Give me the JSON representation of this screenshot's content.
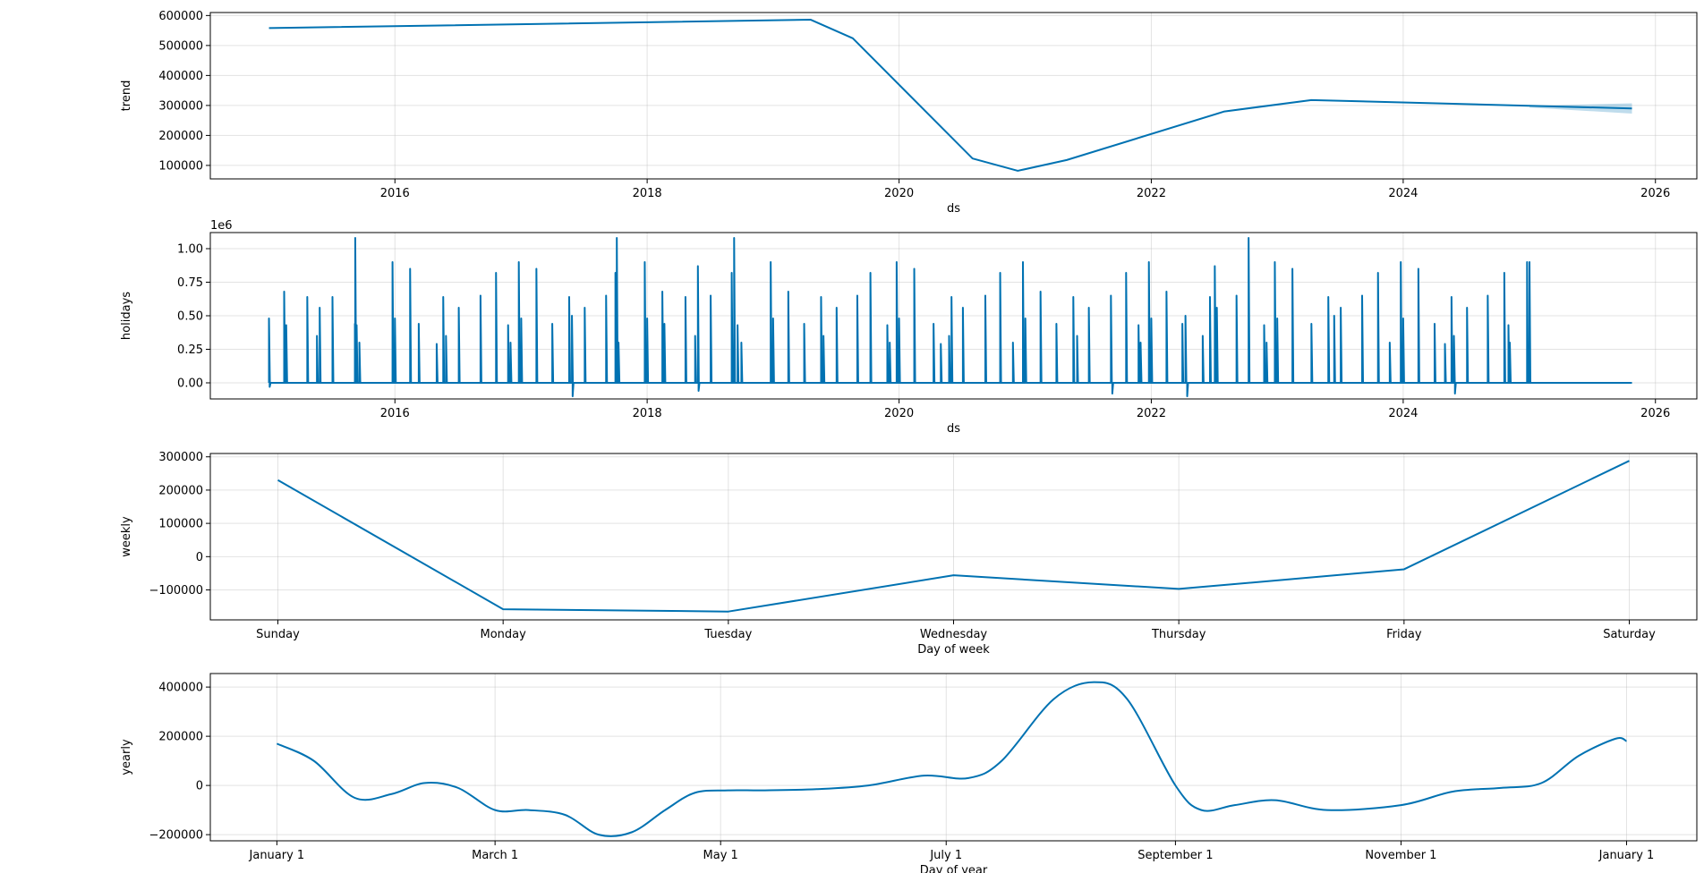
{
  "chart_data": [
    {
      "id": "trend",
      "type": "line",
      "xlabel": "ds",
      "ylabel": "trend",
      "x_axis": "date",
      "xlim": [
        "2014-07-15",
        "2026-05-01"
      ],
      "ylim": [
        55000,
        610000
      ],
      "xticks": [
        {
          "value": "2016-01-01",
          "label": "2016"
        },
        {
          "value": "2018-01-01",
          "label": "2018"
        },
        {
          "value": "2020-01-01",
          "label": "2020"
        },
        {
          "value": "2022-01-01",
          "label": "2022"
        },
        {
          "value": "2024-01-01",
          "label": "2024"
        },
        {
          "value": "2026-01-01",
          "label": "2026"
        }
      ],
      "yticks": [
        {
          "value": 100000,
          "label": "100000"
        },
        {
          "value": 200000,
          "label": "200000"
        },
        {
          "value": 300000,
          "label": "300000"
        },
        {
          "value": 400000,
          "label": "400000"
        },
        {
          "value": 500000,
          "label": "500000"
        },
        {
          "value": 600000,
          "label": "600000"
        }
      ],
      "grid": true,
      "series": [
        {
          "color": "#0072B2",
          "x": [
            "2015-01-01",
            "2019-04-20",
            "2019-08-20",
            "2020-08-01",
            "2020-12-10",
            "2021-05-01",
            "2022-08-01",
            "2023-04-10",
            "2025-10-25"
          ],
          "y": [
            558000,
            586000,
            524000,
            123000,
            82000,
            118000,
            280000,
            318000,
            290000
          ]
        }
      ],
      "uncertainty": {
        "color": "#0072B2",
        "x": [
          "2025-01-01",
          "2025-10-25"
        ],
        "upper": [
          299000,
          307000
        ],
        "lower": [
          293000,
          273000
        ]
      }
    },
    {
      "id": "holidays",
      "type": "line",
      "xlabel": "ds",
      "ylabel": "holidays",
      "x_axis": "date",
      "offset_text": "1e6",
      "xlim": [
        "2014-07-15",
        "2026-05-01"
      ],
      "ylim": [
        -0.12,
        1.12
      ],
      "xticks": [
        {
          "value": "2016-01-01",
          "label": "2016"
        },
        {
          "value": "2018-01-01",
          "label": "2018"
        },
        {
          "value": "2020-01-01",
          "label": "2020"
        },
        {
          "value": "2022-01-01",
          "label": "2022"
        },
        {
          "value": "2024-01-01",
          "label": "2024"
        },
        {
          "value": "2026-01-01",
          "label": "2026"
        }
      ],
      "yticks": [
        {
          "value": 0.0,
          "label": "0.00"
        },
        {
          "value": 0.25,
          "label": "0.25"
        },
        {
          "value": 0.5,
          "label": "0.50"
        },
        {
          "value": 0.75,
          "label": "0.75"
        },
        {
          "value": 1.0,
          "label": "1.00"
        }
      ],
      "grid": true,
      "baseline_end": "2025-10-25",
      "series": [
        {
          "color": "#0072B2",
          "spikes": [
            [
              "2015-01-01",
              0.48
            ],
            [
              "2015-01-03",
              -0.03
            ],
            [
              "2015-02-14",
              0.68
            ],
            [
              "2015-02-20",
              0.43
            ],
            [
              "2015-04-22",
              0.64
            ],
            [
              "2015-05-20",
              0.35
            ],
            [
              "2015-05-28",
              0.56
            ],
            [
              "2015-07-04",
              0.64
            ],
            [
              "2015-09-07",
              0.44
            ],
            [
              "2015-09-08",
              1.08
            ],
            [
              "2015-09-12",
              0.43
            ],
            [
              "2015-09-20",
              0.3
            ],
            [
              "2015-12-25",
              0.9
            ],
            [
              "2016-01-01",
              0.48
            ],
            [
              "2016-02-14",
              0.85
            ],
            [
              "2016-03-10",
              0.44
            ],
            [
              "2016-05-01",
              0.29
            ],
            [
              "2016-05-20",
              0.64
            ],
            [
              "2016-05-28",
              0.35
            ],
            [
              "2016-07-04",
              0.56
            ],
            [
              "2016-09-05",
              0.65
            ],
            [
              "2016-10-20",
              0.82
            ],
            [
              "2016-11-24",
              0.43
            ],
            [
              "2016-12-01",
              0.3
            ],
            [
              "2016-12-25",
              0.9
            ],
            [
              "2017-01-01",
              0.48
            ],
            [
              "2017-02-14",
              0.85
            ],
            [
              "2017-04-01",
              0.44
            ],
            [
              "2017-05-20",
              0.64
            ],
            [
              "2017-05-28",
              0.5
            ],
            [
              "2017-05-30",
              -0.1
            ],
            [
              "2017-07-04",
              0.56
            ],
            [
              "2017-09-04",
              0.65
            ],
            [
              "2017-10-01",
              0.82
            ],
            [
              "2017-10-05",
              1.08
            ],
            [
              "2017-10-10",
              0.3
            ],
            [
              "2017-12-25",
              0.9
            ],
            [
              "2018-01-01",
              0.48
            ],
            [
              "2018-02-14",
              0.68
            ],
            [
              "2018-02-20",
              0.44
            ],
            [
              "2018-04-22",
              0.64
            ],
            [
              "2018-05-20",
              0.35
            ],
            [
              "2018-05-28",
              0.87
            ],
            [
              "2018-05-30",
              -0.06
            ],
            [
              "2018-07-04",
              0.65
            ],
            [
              "2018-09-03",
              0.82
            ],
            [
              "2018-09-10",
              1.08
            ],
            [
              "2018-09-20",
              0.43
            ],
            [
              "2018-10-01",
              0.3
            ],
            [
              "2018-12-25",
              0.9
            ],
            [
              "2019-01-01",
              0.48
            ],
            [
              "2019-02-14",
              0.68
            ],
            [
              "2019-04-01",
              0.44
            ],
            [
              "2019-05-20",
              0.64
            ],
            [
              "2019-05-27",
              0.35
            ],
            [
              "2019-07-04",
              0.56
            ],
            [
              "2019-09-02",
              0.65
            ],
            [
              "2019-10-10",
              0.82
            ],
            [
              "2019-11-28",
              0.43
            ],
            [
              "2019-12-05",
              0.3
            ],
            [
              "2019-12-25",
              0.9
            ],
            [
              "2020-01-01",
              0.48
            ],
            [
              "2020-02-14",
              0.85
            ],
            [
              "2020-04-10",
              0.44
            ],
            [
              "2020-05-01",
              0.29
            ],
            [
              "2020-05-25",
              0.35
            ],
            [
              "2020-06-01",
              0.64
            ],
            [
              "2020-07-04",
              0.56
            ],
            [
              "2020-09-07",
              0.65
            ],
            [
              "2020-10-20",
              0.82
            ],
            [
              "2020-11-26",
              0.3
            ],
            [
              "2020-12-25",
              0.9
            ],
            [
              "2021-01-01",
              0.48
            ],
            [
              "2021-02-14",
              0.68
            ],
            [
              "2021-04-01",
              0.44
            ],
            [
              "2021-05-20",
              0.64
            ],
            [
              "2021-05-31",
              0.35
            ],
            [
              "2021-07-04",
              0.56
            ],
            [
              "2021-09-06",
              0.65
            ],
            [
              "2021-09-10",
              -0.08
            ],
            [
              "2021-10-20",
              0.82
            ],
            [
              "2021-11-25",
              0.43
            ],
            [
              "2021-12-01",
              0.3
            ],
            [
              "2021-12-25",
              0.9
            ],
            [
              "2022-01-01",
              0.48
            ],
            [
              "2022-02-14",
              0.68
            ],
            [
              "2022-04-01",
              0.44
            ],
            [
              "2022-04-10",
              0.5
            ],
            [
              "2022-04-15",
              -0.1
            ],
            [
              "2022-05-30",
              0.35
            ],
            [
              "2022-06-20",
              0.64
            ],
            [
              "2022-07-04",
              0.87
            ],
            [
              "2022-07-10",
              0.56
            ],
            [
              "2022-09-05",
              0.65
            ],
            [
              "2022-10-10",
              1.08
            ],
            [
              "2022-11-24",
              0.43
            ],
            [
              "2022-12-01",
              0.3
            ],
            [
              "2022-12-25",
              0.9
            ],
            [
              "2023-01-01",
              0.48
            ],
            [
              "2023-02-14",
              0.85
            ],
            [
              "2023-04-10",
              0.44
            ],
            [
              "2023-05-29",
              0.64
            ],
            [
              "2023-06-15",
              0.5
            ],
            [
              "2023-07-04",
              0.56
            ],
            [
              "2023-09-04",
              0.65
            ],
            [
              "2023-10-20",
              0.82
            ],
            [
              "2023-11-23",
              0.3
            ],
            [
              "2023-12-25",
              0.9
            ],
            [
              "2024-01-01",
              0.48
            ],
            [
              "2024-02-14",
              0.85
            ],
            [
              "2024-04-01",
              0.44
            ],
            [
              "2024-05-01",
              0.29
            ],
            [
              "2024-05-20",
              0.64
            ],
            [
              "2024-05-27",
              0.35
            ],
            [
              "2024-05-30",
              -0.08
            ],
            [
              "2024-07-04",
              0.56
            ],
            [
              "2024-09-02",
              0.65
            ],
            [
              "2024-10-20",
              0.82
            ],
            [
              "2024-11-01",
              0.43
            ],
            [
              "2024-11-05",
              0.3
            ],
            [
              "2024-12-25",
              0.9
            ],
            [
              "2025-01-01",
              0.9
            ]
          ]
        }
      ]
    },
    {
      "id": "weekly",
      "type": "line",
      "xlabel": "Day of week",
      "ylabel": "weekly",
      "x_axis": "index",
      "xlim": [
        -0.3,
        6.3
      ],
      "ylim": [
        -190000,
        310000
      ],
      "xticks": [
        {
          "value": 0,
          "label": "Sunday"
        },
        {
          "value": 1,
          "label": "Monday"
        },
        {
          "value": 2,
          "label": "Tuesday"
        },
        {
          "value": 3,
          "label": "Wednesday"
        },
        {
          "value": 4,
          "label": "Thursday"
        },
        {
          "value": 5,
          "label": "Friday"
        },
        {
          "value": 6,
          "label": "Saturday"
        }
      ],
      "yticks": [
        {
          "value": -100000,
          "label": "−100000"
        },
        {
          "value": 0,
          "label": "0"
        },
        {
          "value": 100000,
          "label": "100000"
        },
        {
          "value": 200000,
          "label": "200000"
        },
        {
          "value": 300000,
          "label": "300000"
        }
      ],
      "grid": true,
      "series": [
        {
          "color": "#0072B2",
          "x": [
            0,
            1,
            2,
            3,
            4,
            5,
            6
          ],
          "y": [
            230000,
            -158000,
            -165000,
            -56000,
            -97000,
            -38000,
            288000
          ]
        }
      ]
    },
    {
      "id": "yearly",
      "type": "line",
      "xlabel": "Day of year",
      "ylabel": "yearly",
      "x_axis": "day-of-year",
      "smooth": true,
      "xlim": [
        -18,
        384
      ],
      "ylim": [
        -225000,
        455000
      ],
      "xticks": [
        {
          "value": 0,
          "label": "January 1"
        },
        {
          "value": 59,
          "label": "March 1"
        },
        {
          "value": 120,
          "label": "May 1"
        },
        {
          "value": 181,
          "label": "July 1"
        },
        {
          "value": 243,
          "label": "September 1"
        },
        {
          "value": 304,
          "label": "November 1"
        },
        {
          "value": 365,
          "label": "January 1"
        }
      ],
      "yticks": [
        {
          "value": -200000,
          "label": "−200000"
        },
        {
          "value": 0,
          "label": "0"
        },
        {
          "value": 200000,
          "label": "200000"
        },
        {
          "value": 400000,
          "label": "400000"
        }
      ],
      "grid": true,
      "series": [
        {
          "color": "#0072B2",
          "x": [
            0,
            10,
            21,
            31,
            40,
            49,
            59,
            68,
            78,
            87,
            96,
            105,
            113,
            122,
            132,
            146,
            160,
            175,
            187,
            196,
            210,
            221,
            230,
            243,
            250,
            259,
            270,
            284,
            304,
            318,
            331,
            342,
            352,
            362,
            365
          ],
          "y": [
            170000,
            100000,
            -50000,
            -35000,
            10000,
            -10000,
            -100000,
            -100000,
            -120000,
            -200000,
            -190000,
            -100000,
            -30000,
            -20000,
            -20000,
            -15000,
            0,
            40000,
            30000,
            100000,
            350000,
            420000,
            350000,
            0,
            -100000,
            -80000,
            -60000,
            -100000,
            -80000,
            -25000,
            -10000,
            10000,
            120000,
            190000,
            180000
          ]
        }
      ]
    }
  ]
}
